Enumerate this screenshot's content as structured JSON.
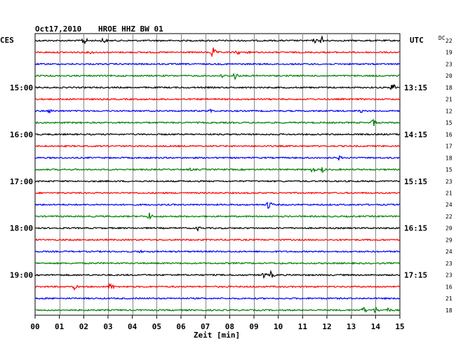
{
  "header": {
    "date": "Oct17,2010",
    "station": "HROE HHZ BW 01",
    "left_zone": "CES",
    "right_zone": "UTC",
    "scale_unit": "DC"
  },
  "colors": {
    "trace_cycle": [
      "#000000",
      "#ff0000",
      "#0000ff",
      "#007f00"
    ],
    "grid": "#000000"
  },
  "chart_data": {
    "type": "line",
    "title": "Oct17,2010   HROE HHZ BW 01",
    "xlabel": "Zeit [min]",
    "ylabel": "",
    "xlim": [
      0,
      15
    ],
    "x_ticks": [
      "00",
      "01",
      "02",
      "03",
      "04",
      "05",
      "06",
      "07",
      "08",
      "09",
      "10",
      "11",
      "12",
      "13",
      "14",
      "15"
    ],
    "left_time_labels": [
      {
        "row": 4,
        "label": "15:00"
      },
      {
        "row": 8,
        "label": "16:00"
      },
      {
        "row": 12,
        "label": "17:00"
      },
      {
        "row": 16,
        "label": "18:00"
      },
      {
        "row": 20,
        "label": "19:00"
      }
    ],
    "right_time_labels": [
      {
        "row": 4,
        "label": "13:15"
      },
      {
        "row": 8,
        "label": "14:15"
      },
      {
        "row": 12,
        "label": "15:15"
      },
      {
        "row": 16,
        "label": "16:15"
      },
      {
        "row": 20,
        "label": "17:15"
      }
    ],
    "row_scale_values": [
      "22",
      "19",
      "23",
      "20",
      "18",
      "21",
      "12",
      "15",
      "16",
      "17",
      "18",
      "15",
      "23",
      "21",
      "24",
      "22",
      "20",
      "29",
      "24",
      "23",
      "23",
      "16",
      "21",
      "18"
    ],
    "series": [
      {
        "row": 0,
        "color": "#000000",
        "events": [
          [
            2.0,
            8
          ],
          [
            2.8,
            6
          ],
          [
            11.8,
            7
          ],
          [
            11.5,
            4
          ]
        ]
      },
      {
        "row": 1,
        "color": "#ff0000",
        "events": [
          [
            7.3,
            9
          ],
          [
            8.3,
            5
          ],
          [
            8.8,
            3
          ],
          [
            2.3,
            3
          ]
        ]
      },
      {
        "row": 2,
        "color": "#0000ff",
        "events": []
      },
      {
        "row": 3,
        "color": "#007f00",
        "events": [
          [
            8.2,
            7
          ],
          [
            7.7,
            4
          ]
        ]
      },
      {
        "row": 4,
        "color": "#000000",
        "events": [
          [
            14.7,
            8
          ]
        ]
      },
      {
        "row": 5,
        "color": "#ff0000",
        "events": []
      },
      {
        "row": 6,
        "color": "#0000ff",
        "events": [
          [
            0.6,
            4
          ],
          [
            7.2,
            4
          ],
          [
            13.4,
            3
          ]
        ]
      },
      {
        "row": 7,
        "color": "#007f00",
        "events": [
          [
            13.9,
            7
          ]
        ]
      },
      {
        "row": 8,
        "color": "#000000",
        "events": []
      },
      {
        "row": 9,
        "color": "#ff0000",
        "events": []
      },
      {
        "row": 10,
        "color": "#0000ff",
        "events": [
          [
            12.5,
            4
          ]
        ]
      },
      {
        "row": 11,
        "color": "#007f00",
        "events": [
          [
            11.4,
            5
          ],
          [
            11.8,
            5
          ],
          [
            6.4,
            3
          ]
        ]
      },
      {
        "row": 12,
        "color": "#000000",
        "events": []
      },
      {
        "row": 13,
        "color": "#ff0000",
        "events": []
      },
      {
        "row": 14,
        "color": "#0000ff",
        "events": [
          [
            9.6,
            8
          ]
        ]
      },
      {
        "row": 15,
        "color": "#007f00",
        "events": [
          [
            4.7,
            6
          ]
        ]
      },
      {
        "row": 16,
        "color": "#000000",
        "events": [
          [
            6.7,
            4
          ]
        ]
      },
      {
        "row": 17,
        "color": "#ff0000",
        "events": []
      },
      {
        "row": 18,
        "color": "#0000ff",
        "events": [
          [
            4.3,
            3
          ]
        ]
      },
      {
        "row": 19,
        "color": "#007f00",
        "events": []
      },
      {
        "row": 20,
        "color": "#000000",
        "events": [
          [
            9.4,
            5
          ],
          [
            9.7,
            6
          ]
        ]
      },
      {
        "row": 21,
        "color": "#ff0000",
        "events": [
          [
            1.6,
            5
          ],
          [
            3.1,
            7
          ]
        ]
      },
      {
        "row": 22,
        "color": "#0000ff",
        "events": []
      },
      {
        "row": 23,
        "color": "#007f00",
        "events": [
          [
            13.5,
            6
          ],
          [
            14.0,
            6
          ],
          [
            14.5,
            5
          ]
        ]
      }
    ]
  }
}
